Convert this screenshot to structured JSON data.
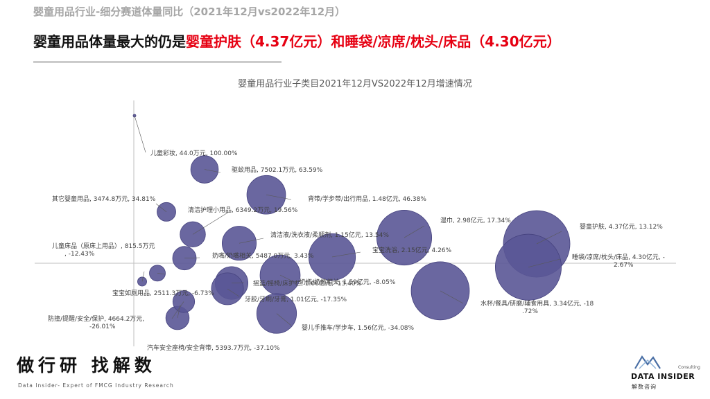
{
  "page": {
    "supertitle": "婴童用品行业-细分赛道体量同比（2021年12月vs2022年12月）",
    "headline_part1": "婴童用品体量最大的仍是",
    "headline_part2": "婴童护肤（4.37亿元）",
    "headline_part3": "和睡袋/凉席/枕头/床品（4.30亿元）",
    "brand_left": "做行研 找解数",
    "brand_left_sub": "Data Insider- Expert of FMCG Industry Research",
    "logo_consulting": "Consulting",
    "logo_name": "DATA INSIDER",
    "logo_cn": "解数咨询"
  },
  "colors": {
    "bubble": "#5a5796",
    "bubble_stroke": "#45427e",
    "axis": "#bfbfbf",
    "label": "#404040",
    "leader": "#595959",
    "highlight": "#e60012"
  },
  "chart_data": {
    "type": "scatter",
    "title": "婴童用品行业子类目2021年12月VS2022年12月增速情况",
    "xlabel": "",
    "ylabel": "",
    "size_unit": "万元",
    "grid": false,
    "legend": "none",
    "points": [
      {
        "name": "儿童彩妆",
        "size": 44.0,
        "growth": 100.0,
        "label": "儿童彩妆, 44.0万元, 100.00%"
      },
      {
        "name": "驱蚊用品",
        "size": 7502.1,
        "growth": 63.59,
        "label": "驱蚊用品, 7502.1万元, 63.59%"
      },
      {
        "name": "背带/学步带/出行用品",
        "size": 14800,
        "growth": 46.38,
        "label": "背带/学步带/出行用品, 1.48亿元, 46.38%"
      },
      {
        "name": "其它婴童用品",
        "size": 3474.8,
        "growth": 34.81,
        "label": "其它婴童用品, 3474.8万元, 34.81%"
      },
      {
        "name": "清洁护理小用品",
        "size": 6349.2,
        "growth": 19.56,
        "label": "清洁护理小用品, 6349.2万元, 19.56%"
      },
      {
        "name": "湿巾",
        "size": 29800,
        "growth": 17.34,
        "label": "湿巾, 2.98亿元, 17.34%"
      },
      {
        "name": "清洁液/洗衣液/柔顺剂",
        "size": 11500,
        "growth": 13.54,
        "label": "清洁液/洗衣液/柔顺剂, 1.15亿元, 13.54%"
      },
      {
        "name": "婴童护肤",
        "size": 43700,
        "growth": 13.12,
        "label": "婴童护肤, 4.37亿元, 13.12%"
      },
      {
        "name": "宝宝洗浴",
        "size": 21500,
        "growth": 4.26,
        "label": "宝宝洗浴, 2.15亿元, 4.26%"
      },
      {
        "name": "奶嘴/奶嘴相关",
        "size": 5487.0,
        "growth": 3.43,
        "label": "奶嘴/奶嘴相关, 5487.0万元, 3.43%"
      },
      {
        "name": "睡袋/凉席/枕头/床品",
        "size": 43000,
        "growth": -2.67,
        "label": "睡袋/凉席/枕头/床品, 4.30亿元, -2.67%"
      },
      {
        "name": "宝宝如厕用品",
        "size": 2511.3,
        "growth": -6.73,
        "label": "宝宝如厕用品, 2511.3万元, -6.73%"
      },
      {
        "name": "奶瓶/奶瓶相关",
        "size": 15900,
        "growth": -8.05,
        "label": "奶瓶/奶瓶相关, 1.59亿元, -8.05%"
      },
      {
        "name": "儿童床品（原床上用品）",
        "size": 815.5,
        "growth": -12.43,
        "label": "儿童床品（原床上用品）, 815.5万元, -12.43%"
      },
      {
        "name": "摇篮/摇椅/床护栏",
        "size": 10600,
        "growth": -13.4,
        "label": "摇篮/摇椅/床护栏, 1.06亿元, -13.40%"
      },
      {
        "name": "牙胶/牙刷/牙膏",
        "size": 10100,
        "growth": -17.35,
        "label": "牙胶/牙刷/牙膏, 1.01亿元, -17.35%"
      },
      {
        "name": "水杯/餐具/研磨/辅食用具",
        "size": 33400,
        "growth": -18.72,
        "label": "水杯/餐具/研磨/辅食用具, 3.34亿元, -18.72%"
      },
      {
        "name": "防撞/提醒/安全/保护",
        "size": 4664.2,
        "growth": -26.01,
        "label": "防撞/提醒/安全/保护, 4664.2万元, -26.01%"
      },
      {
        "name": "婴儿手推车/学步车",
        "size": 15600,
        "growth": -34.08,
        "label": "婴儿手推车/学步车, 1.56亿元, -34.08%"
      },
      {
        "name": "汽车安全座椅/安全背带",
        "size": 5393.7,
        "growth": -37.1,
        "label": "汽车安全座椅/安全背带, 5393.7万元, -37.10%"
      }
    ]
  }
}
